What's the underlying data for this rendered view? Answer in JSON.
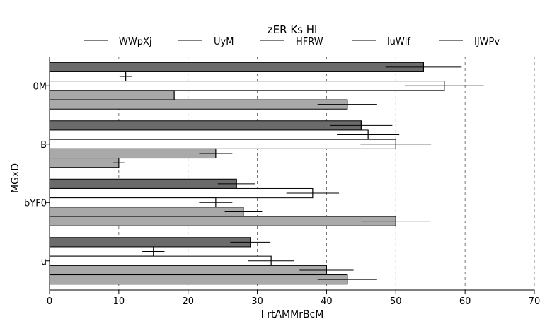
{
  "chart_data": {
    "type": "bar",
    "orientation": "horizontal",
    "title": "zER  Ks  Hl",
    "xlabel": "I  rtAMMrBcM",
    "ylabel": "MGxD",
    "categories": [
      "0M",
      "B",
      "bYF0",
      "u"
    ],
    "xlim": [
      0,
      70
    ],
    "xticks": [
      0,
      10,
      20,
      30,
      40,
      50,
      60,
      70
    ],
    "legend_position": "top",
    "grid": "vertical dashed",
    "series": [
      {
        "name": "WWpXj",
        "color": "#6b6b6b",
        "values": [
          54,
          45,
          27,
          29
        ],
        "errors": [
          5.5,
          4.5,
          2.7,
          2.9
        ]
      },
      {
        "name": "UyM",
        "color": "#ffffff",
        "values": [
          11,
          46,
          38,
          15
        ],
        "errors": [
          0.9,
          4.5,
          3.8,
          1.6
        ]
      },
      {
        "name": "HFRW",
        "color": "#ffffff",
        "values": [
          57,
          50,
          24,
          32
        ],
        "errors": [
          5.7,
          5.1,
          2.4,
          3.3
        ]
      },
      {
        "name": "luWlf",
        "color": "#a9a9a9",
        "values": [
          18,
          24,
          28,
          40
        ],
        "errors": [
          1.8,
          2.4,
          2.7,
          3.9
        ]
      },
      {
        "name": "IJWPv",
        "color": "#a9a9a9",
        "values": [
          43,
          10,
          50,
          43
        ],
        "errors": [
          4.3,
          0.8,
          5.0,
          4.3
        ]
      }
    ]
  }
}
